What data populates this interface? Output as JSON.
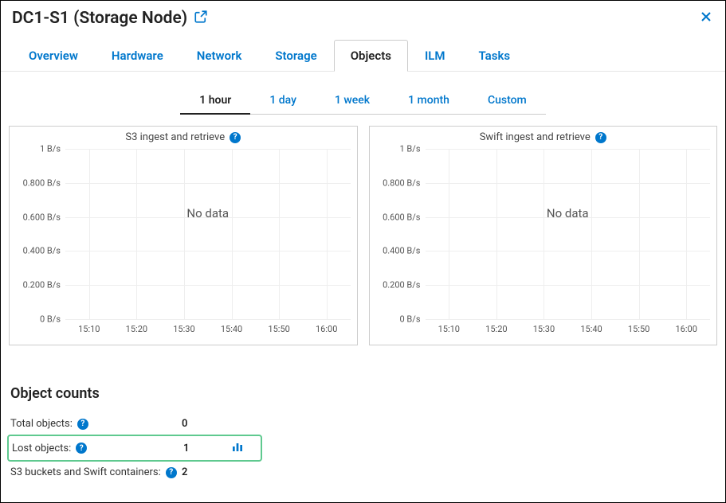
{
  "header": {
    "title": "DC1-S1 (Storage Node)"
  },
  "main_tabs": {
    "items": [
      "Overview",
      "Hardware",
      "Network",
      "Storage",
      "Objects",
      "ILM",
      "Tasks"
    ],
    "active_index": 4
  },
  "time_tabs": {
    "items": [
      "1 hour",
      "1 day",
      "1 week",
      "1 month",
      "Custom"
    ],
    "active_index": 0
  },
  "charts": [
    {
      "title": "S3 ingest and retrieve",
      "no_data_text": "No data",
      "y_ticks": [
        "0 B/s",
        "0.200 B/s",
        "0.400 B/s",
        "0.600 B/s",
        "0.800 B/s",
        "1 B/s"
      ],
      "x_ticks": [
        "15:10",
        "15:20",
        "15:30",
        "15:40",
        "15:50",
        "16:00"
      ],
      "grid_color": "#eeeeee",
      "background": "#ffffff"
    },
    {
      "title": "Swift ingest and retrieve",
      "no_data_text": "No data",
      "y_ticks": [
        "0 B/s",
        "0.200 B/s",
        "0.400 B/s",
        "0.600 B/s",
        "0.800 B/s",
        "1 B/s"
      ],
      "x_ticks": [
        "15:10",
        "15:20",
        "15:30",
        "15:40",
        "15:50",
        "16:00"
      ],
      "grid_color": "#eeeeee",
      "background": "#ffffff"
    }
  ],
  "object_counts": {
    "heading": "Object counts",
    "rows": [
      {
        "label": "Total objects:",
        "value": "0",
        "highlighted": false,
        "has_chart_icon": false
      },
      {
        "label": "Lost objects:",
        "value": "1",
        "highlighted": true,
        "has_chart_icon": true
      },
      {
        "label": "S3 buckets and Swift containers:",
        "value": "2",
        "highlighted": false,
        "has_chart_icon": false
      }
    ]
  },
  "colors": {
    "link": "#0077cc",
    "highlight_border": "#5fc98f",
    "text": "#333333"
  }
}
